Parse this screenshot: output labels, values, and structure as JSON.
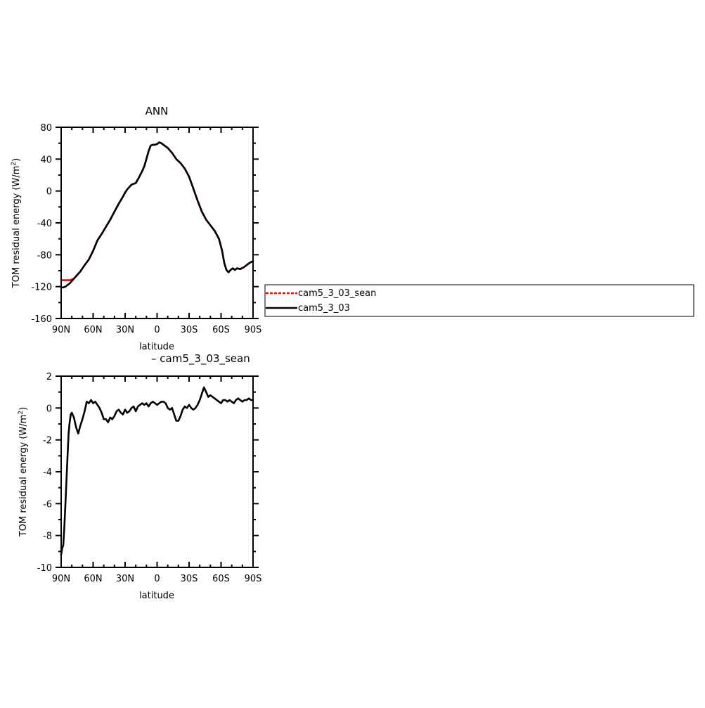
{
  "chart_data": [
    {
      "type": "line",
      "title": "ANN",
      "xlabel": "latitude",
      "ylabel": "TOM residual energy (W/m²)",
      "ylabel_main": "TOM residual energy (W/m",
      "ylabel_sup": "2",
      "ylabel_close": ")",
      "xlim": [
        90,
        -90
      ],
      "ylim": [
        -160,
        80
      ],
      "xticks": [
        90,
        60,
        30,
        0,
        -30,
        -60,
        -90
      ],
      "xtick_labels": [
        "90N",
        "60N",
        "30N",
        "0",
        "30S",
        "60S",
        "90S"
      ],
      "yticks": [
        80,
        40,
        0,
        -40,
        -80,
        -120,
        -160
      ],
      "ytick_labels": [
        "80",
        "40",
        "0",
        "-40",
        "-80",
        "-120",
        "-160"
      ],
      "grid": false,
      "legend_position": "right",
      "series": [
        {
          "name": "cam5_3_03_sean",
          "color": "#ff0000",
          "dash": "dashed",
          "x": [
            90,
            88,
            86,
            84,
            82,
            80,
            78,
            76,
            72,
            68,
            64,
            60,
            56,
            52,
            48,
            44,
            40,
            36,
            32,
            30,
            28,
            24,
            20,
            17,
            14,
            12,
            10,
            8,
            6,
            4,
            2,
            0,
            -2,
            -4,
            -6,
            -8,
            -10,
            -14,
            -18,
            -22,
            -26,
            -30,
            -34,
            -38,
            -42,
            -46,
            -50,
            -54,
            -58,
            -61,
            -63,
            -65,
            -67,
            -69,
            -71,
            -73,
            -75,
            -78,
            -81,
            -84,
            -87,
            -90
          ],
          "y": [
            -112,
            -112,
            -112,
            -112,
            -112,
            -111,
            -110,
            -107,
            -101,
            -93,
            -86,
            -75,
            -62,
            -54,
            -45,
            -36,
            -26,
            -16,
            -7,
            -2,
            2,
            8,
            10,
            17,
            25,
            31,
            40,
            50,
            57,
            58,
            58,
            59,
            61,
            60,
            58,
            56,
            54,
            48,
            40,
            35,
            28,
            18,
            3,
            -12,
            -26,
            -36,
            -43,
            -50,
            -60,
            -75,
            -90,
            -99,
            -102,
            -99,
            -97,
            -99,
            -97,
            -98,
            -96,
            -93,
            -90,
            -88
          ]
        },
        {
          "name": "cam5_3_03",
          "color": "#000000",
          "dash": "solid",
          "x": [
            90,
            88,
            86,
            84,
            82,
            80,
            78,
            76,
            72,
            68,
            64,
            60,
            56,
            52,
            48,
            44,
            40,
            36,
            32,
            30,
            28,
            24,
            20,
            17,
            14,
            12,
            10,
            8,
            6,
            4,
            2,
            0,
            -2,
            -4,
            -6,
            -8,
            -10,
            -14,
            -18,
            -22,
            -26,
            -30,
            -34,
            -38,
            -42,
            -46,
            -50,
            -54,
            -58,
            -61,
            -63,
            -65,
            -67,
            -69,
            -71,
            -73,
            -75,
            -78,
            -81,
            -84,
            -87,
            -90
          ],
          "y": [
            -121,
            -121,
            -120,
            -118,
            -116,
            -113,
            -110,
            -107,
            -101,
            -93,
            -86,
            -75,
            -62,
            -54,
            -45,
            -36,
            -26,
            -16,
            -7,
            -2,
            2,
            8,
            10,
            17,
            25,
            31,
            40,
            50,
            57,
            58,
            58,
            59,
            61,
            60,
            58,
            56,
            54,
            48,
            40,
            35,
            28,
            18,
            3,
            -12,
            -26,
            -36,
            -43,
            -50,
            -60,
            -75,
            -90,
            -99,
            -102,
            -99,
            -97,
            -99,
            -97,
            -98,
            -96,
            -93,
            -90,
            -88
          ]
        }
      ]
    },
    {
      "type": "line",
      "title": "– cam5_3_03_sean",
      "xlabel": "latitude",
      "ylabel": "TOM residual energy (W/m²)",
      "ylabel_main": "TOM residual energy (W/m",
      "ylabel_sup": "2",
      "ylabel_close": ")",
      "xlim": [
        90,
        -90
      ],
      "ylim": [
        -10,
        2
      ],
      "xticks": [
        90,
        60,
        30,
        0,
        -30,
        -60,
        -90
      ],
      "xtick_labels": [
        "90N",
        "60N",
        "30N",
        "0",
        "30S",
        "60S",
        "90S"
      ],
      "yticks": [
        2,
        0,
        -2,
        -4,
        -6,
        -8,
        -10
      ],
      "ytick_labels": [
        "2",
        "0",
        "-2",
        "-4",
        "-6",
        "-8",
        "-10"
      ],
      "grid": false,
      "series": [
        {
          "color": "#000000",
          "dash": "solid",
          "x": [
            90,
            89,
            88,
            87,
            86,
            85,
            84,
            83,
            82,
            81,
            80,
            78,
            76,
            74,
            72,
            70,
            68,
            66,
            64,
            62,
            60,
            58,
            56,
            54,
            52,
            50,
            48,
            46,
            44,
            42,
            40,
            38,
            36,
            34,
            32,
            30,
            28,
            26,
            24,
            22,
            20,
            18,
            16,
            14,
            12,
            10,
            8,
            6,
            4,
            2,
            0,
            -2,
            -4,
            -6,
            -8,
            -10,
            -12,
            -14,
            -16,
            -18,
            -20,
            -22,
            -24,
            -26,
            -28,
            -30,
            -32,
            -34,
            -36,
            -38,
            -40,
            -42,
            -44,
            -46,
            -48,
            -50,
            -52,
            -54,
            -56,
            -58,
            -60,
            -62,
            -64,
            -66,
            -68,
            -70,
            -72,
            -74,
            -76,
            -78,
            -80,
            -82,
            -84,
            -86,
            -88,
            -90
          ],
          "y": [
            -9.2,
            -8.8,
            -8.6,
            -7.5,
            -6.0,
            -4.5,
            -3.0,
            -1.6,
            -0.9,
            -0.4,
            -0.3,
            -0.6,
            -1.2,
            -1.6,
            -1.1,
            -0.7,
            -0.2,
            0.4,
            0.3,
            0.5,
            0.3,
            0.4,
            0.2,
            0.0,
            -0.3,
            -0.7,
            -0.7,
            -0.9,
            -0.6,
            -0.7,
            -0.5,
            -0.2,
            -0.1,
            -0.3,
            -0.4,
            -0.1,
            -0.3,
            -0.2,
            0.0,
            0.1,
            -0.2,
            0.1,
            0.2,
            0.3,
            0.2,
            0.3,
            0.1,
            0.3,
            0.4,
            0.3,
            0.2,
            0.3,
            0.4,
            0.4,
            0.3,
            0.0,
            -0.1,
            0.0,
            -0.4,
            -0.8,
            -0.8,
            -0.5,
            -0.1,
            0.1,
            0.0,
            0.2,
            0.0,
            -0.1,
            0.0,
            0.2,
            0.5,
            0.9,
            1.3,
            1.0,
            0.7,
            0.8,
            0.7,
            0.6,
            0.5,
            0.4,
            0.3,
            0.5,
            0.5,
            0.4,
            0.5,
            0.4,
            0.3,
            0.5,
            0.6,
            0.5,
            0.4,
            0.5,
            0.5,
            0.6,
            0.5,
            0.5
          ]
        }
      ]
    }
  ]
}
